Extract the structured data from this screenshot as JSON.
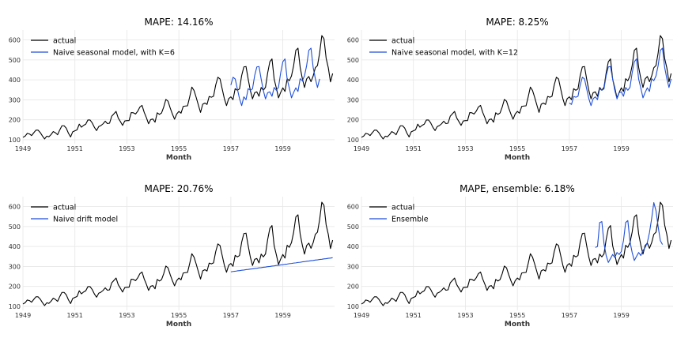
{
  "chart_data": [
    {
      "type": "line",
      "title": "MAPE: 14.16%",
      "xlabel": "Month",
      "ylabel": "",
      "xlim": [
        1949.0,
        1960.99
      ],
      "ylim": [
        80,
        650
      ],
      "xticks": [
        "1949",
        "1951",
        "1953",
        "1955",
        "1957",
        "1959"
      ],
      "yticks": [
        "100",
        "200",
        "300",
        "400",
        "500",
        "600"
      ],
      "grid": true,
      "legend": "top-left",
      "series": [
        {
          "name": "actual",
          "color": "#000000",
          "start": 1949.0,
          "values": [
            112,
            118,
            132,
            129,
            121,
            135,
            148,
            148,
            136,
            119,
            104,
            118,
            115,
            126,
            141,
            135,
            125,
            149,
            170,
            170,
            158,
            133,
            114,
            140,
            145,
            150,
            178,
            163,
            172,
            178,
            199,
            199,
            184,
            162,
            146,
            166,
            171,
            180,
            193,
            181,
            183,
            218,
            230,
            242,
            209,
            191,
            172,
            194,
            196,
            196,
            236,
            235,
            229,
            243,
            264,
            272,
            237,
            211,
            180,
            201,
            204,
            188,
            235,
            227,
            234,
            264,
            302,
            293,
            259,
            229,
            203,
            229,
            242,
            233,
            267,
            269,
            270,
            315,
            364,
            347,
            312,
            274,
            237,
            278,
            284,
            277,
            317,
            313,
            318,
            374,
            413,
            405,
            355,
            306,
            271,
            306,
            315,
            301,
            356,
            348,
            355,
            422,
            465,
            467,
            404,
            347,
            305,
            336,
            340,
            318,
            362,
            348,
            363,
            435,
            491,
            505,
            404,
            359,
            310,
            337,
            360,
            342,
            406,
            396,
            420,
            472,
            548,
            559,
            463,
            407,
            362,
            405,
            417,
            391,
            419,
            461,
            472,
            535,
            622,
            606,
            508,
            461,
            390,
            432
          ]
        },
        {
          "name": "Naive seasonal model, with K=6",
          "color": "#1f4fd8",
          "start": 1957.0,
          "values": [
            374,
            413,
            405,
            355,
            306,
            271,
            315,
            301,
            356,
            348,
            355,
            422,
            465,
            467,
            404,
            347,
            305,
            336,
            340,
            318,
            362,
            348,
            363,
            435,
            491,
            505,
            404,
            359,
            310,
            337,
            360,
            342,
            406,
            396,
            420,
            472,
            548,
            559,
            463,
            407,
            362,
            405
          ]
        }
      ]
    },
    {
      "type": "line",
      "title": "MAPE: 8.25%",
      "xlabel": "Month",
      "ylabel": "",
      "xlim": [
        1949.0,
        1960.99
      ],
      "ylim": [
        80,
        650
      ],
      "xticks": [
        "1949",
        "1951",
        "1953",
        "1955",
        "1957",
        "1959"
      ],
      "yticks": [
        "100",
        "200",
        "300",
        "400",
        "500",
        "600"
      ],
      "grid": true,
      "legend": "top-left",
      "series": [
        {
          "name": "actual",
          "color": "#000000",
          "start": 1949.0,
          "values": [
            112,
            118,
            132,
            129,
            121,
            135,
            148,
            148,
            136,
            119,
            104,
            118,
            115,
            126,
            141,
            135,
            125,
            149,
            170,
            170,
            158,
            133,
            114,
            140,
            145,
            150,
            178,
            163,
            172,
            178,
            199,
            199,
            184,
            162,
            146,
            166,
            171,
            180,
            193,
            181,
            183,
            218,
            230,
            242,
            209,
            191,
            172,
            194,
            196,
            196,
            236,
            235,
            229,
            243,
            264,
            272,
            237,
            211,
            180,
            201,
            204,
            188,
            235,
            227,
            234,
            264,
            302,
            293,
            259,
            229,
            203,
            229,
            242,
            233,
            267,
            269,
            270,
            315,
            364,
            347,
            312,
            274,
            237,
            278,
            284,
            277,
            317,
            313,
            318,
            374,
            413,
            405,
            355,
            306,
            271,
            306,
            315,
            301,
            356,
            348,
            355,
            422,
            465,
            467,
            404,
            347,
            305,
            336,
            340,
            318,
            362,
            348,
            363,
            435,
            491,
            505,
            404,
            359,
            310,
            337,
            360,
            342,
            406,
            396,
            420,
            472,
            548,
            559,
            463,
            407,
            362,
            405,
            417,
            391,
            419,
            461,
            472,
            535,
            622,
            606,
            508,
            461,
            390,
            432
          ]
        },
        {
          "name": "Naive seasonal model, with K=12",
          "color": "#1f4fd8",
          "start": 1957.0,
          "values": [
            284,
            277,
            317,
            313,
            318,
            374,
            413,
            405,
            355,
            306,
            271,
            306,
            315,
            301,
            356,
            348,
            355,
            422,
            465,
            467,
            404,
            347,
            305,
            336,
            340,
            318,
            362,
            348,
            363,
            435,
            491,
            505,
            404,
            359,
            310,
            337,
            360,
            342,
            406,
            396,
            420,
            472,
            548,
            559,
            463,
            407,
            362,
            405
          ]
        }
      ]
    },
    {
      "type": "line",
      "title": "MAPE: 20.76%",
      "xlabel": "Month",
      "ylabel": "",
      "xlim": [
        1949.0,
        1960.99
      ],
      "ylim": [
        80,
        650
      ],
      "xticks": [
        "1949",
        "1951",
        "1953",
        "1955",
        "1957",
        "1959"
      ],
      "yticks": [
        "100",
        "200",
        "300",
        "400",
        "500",
        "600"
      ],
      "grid": true,
      "legend": "top-left",
      "series": [
        {
          "name": "actual",
          "color": "#000000",
          "start": 1949.0,
          "values": [
            112,
            118,
            132,
            129,
            121,
            135,
            148,
            148,
            136,
            119,
            104,
            118,
            115,
            126,
            141,
            135,
            125,
            149,
            170,
            170,
            158,
            133,
            114,
            140,
            145,
            150,
            178,
            163,
            172,
            178,
            199,
            199,
            184,
            162,
            146,
            166,
            171,
            180,
            193,
            181,
            183,
            218,
            230,
            242,
            209,
            191,
            172,
            194,
            196,
            196,
            236,
            235,
            229,
            243,
            264,
            272,
            237,
            211,
            180,
            201,
            204,
            188,
            235,
            227,
            234,
            264,
            302,
            293,
            259,
            229,
            203,
            229,
            242,
            233,
            267,
            269,
            270,
            315,
            364,
            347,
            312,
            274,
            237,
            278,
            284,
            277,
            317,
            313,
            318,
            374,
            413,
            405,
            355,
            306,
            271,
            306,
            315,
            301,
            356,
            348,
            355,
            422,
            465,
            467,
            404,
            347,
            305,
            336,
            340,
            318,
            362,
            348,
            363,
            435,
            491,
            505,
            404,
            359,
            310,
            337,
            360,
            342,
            406,
            396,
            420,
            472,
            548,
            559,
            463,
            407,
            362,
            405,
            417,
            391,
            419,
            461,
            472,
            535,
            622,
            606,
            508,
            461,
            390,
            432
          ]
        },
        {
          "name": "Naive drift model",
          "color": "#1f4fd8",
          "start": 1957.0,
          "values": [
            273,
            275,
            276,
            278,
            279,
            281,
            282,
            284,
            285,
            287,
            288,
            290,
            291,
            293,
            294,
            296,
            297,
            299,
            300,
            302,
            303,
            305,
            306,
            308,
            309,
            311,
            312,
            314,
            315,
            317,
            318,
            320,
            321,
            323,
            324,
            326,
            327,
            329,
            330,
            332,
            333,
            335,
            336,
            338,
            339,
            341,
            342,
            344
          ]
        }
      ]
    },
    {
      "type": "line",
      "title": "MAPE, ensemble: 6.18%",
      "xlabel": "Month",
      "ylabel": "",
      "xlim": [
        1949.0,
        1960.99
      ],
      "ylim": [
        80,
        650
      ],
      "xticks": [
        "1949",
        "1951",
        "1953",
        "1955",
        "1957",
        "1959"
      ],
      "yticks": [
        "100",
        "200",
        "300",
        "400",
        "500",
        "600"
      ],
      "grid": true,
      "legend": "top-left",
      "series": [
        {
          "name": "actual",
          "color": "#000000",
          "start": 1949.0,
          "values": [
            112,
            118,
            132,
            129,
            121,
            135,
            148,
            148,
            136,
            119,
            104,
            118,
            115,
            126,
            141,
            135,
            125,
            149,
            170,
            170,
            158,
            133,
            114,
            140,
            145,
            150,
            178,
            163,
            172,
            178,
            199,
            199,
            184,
            162,
            146,
            166,
            171,
            180,
            193,
            181,
            183,
            218,
            230,
            242,
            209,
            191,
            172,
            194,
            196,
            196,
            236,
            235,
            229,
            243,
            264,
            272,
            237,
            211,
            180,
            201,
            204,
            188,
            235,
            227,
            234,
            264,
            302,
            293,
            259,
            229,
            203,
            229,
            242,
            233,
            267,
            269,
            270,
            315,
            364,
            347,
            312,
            274,
            237,
            278,
            284,
            277,
            317,
            313,
            318,
            374,
            413,
            405,
            355,
            306,
            271,
            306,
            315,
            301,
            356,
            348,
            355,
            422,
            465,
            467,
            404,
            347,
            305,
            336,
            340,
            318,
            362,
            348,
            363,
            435,
            491,
            505,
            404,
            359,
            310,
            337,
            360,
            342,
            406,
            396,
            420,
            472,
            548,
            559,
            463,
            407,
            362,
            405,
            417,
            391,
            419,
            461,
            472,
            535,
            622,
            606,
            508,
            461,
            390,
            432
          ]
        },
        {
          "name": "Ensemble",
          "color": "#1f4fd8",
          "start": 1958.0,
          "values": [
            395,
            400,
            520,
            525,
            415,
            355,
            320,
            340,
            360,
            345,
            370,
            360,
            375,
            430,
            520,
            530,
            425,
            370,
            330,
            350,
            370,
            355,
            380,
            395,
            420,
            470,
            540,
            620,
            580,
            500,
            430,
            410
          ]
        }
      ]
    }
  ]
}
